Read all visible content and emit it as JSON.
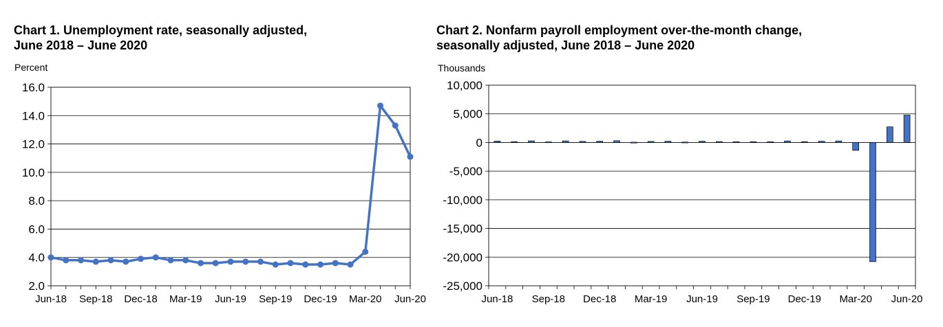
{
  "chart_data": [
    {
      "type": "line",
      "title_line1": "Chart 1. Unemployment rate, seasonally adjusted,",
      "title_line2": "June 2018 – June 2020",
      "ylabel": "Percent",
      "ylim": [
        2.0,
        16.0
      ],
      "yticks": [
        "16.0",
        "14.0",
        "12.0",
        "10.0",
        "8.0",
        "6.0",
        "4.0",
        "2.0"
      ],
      "ytick_values": [
        16,
        14,
        12,
        10,
        8,
        6,
        4,
        2
      ],
      "x_tick_labels": [
        "Jun-18",
        "Sep-18",
        "Dec-18",
        "Mar-19",
        "Jun-19",
        "Sep-19",
        "Dec-19",
        "Mar-20",
        "Jun-20"
      ],
      "x_tick_indices": [
        0,
        3,
        6,
        9,
        12,
        15,
        18,
        21,
        24
      ],
      "categories": [
        "Jun-18",
        "Jul-18",
        "Aug-18",
        "Sep-18",
        "Oct-18",
        "Nov-18",
        "Dec-18",
        "Jan-19",
        "Feb-19",
        "Mar-19",
        "Apr-19",
        "May-19",
        "Jun-19",
        "Jul-19",
        "Aug-19",
        "Sep-19",
        "Oct-19",
        "Nov-19",
        "Dec-19",
        "Jan-20",
        "Feb-20",
        "Mar-20",
        "Apr-20",
        "May-20",
        "Jun-20"
      ],
      "series": [
        {
          "values": [
            4.0,
            3.8,
            3.8,
            3.7,
            3.8,
            3.7,
            3.9,
            4.0,
            3.8,
            3.8,
            3.6,
            3.6,
            3.7,
            3.7,
            3.7,
            3.5,
            3.6,
            3.5,
            3.5,
            3.6,
            3.5,
            4.4,
            14.7,
            13.3,
            11.1
          ]
        }
      ],
      "grid": true,
      "color": "#4472C4"
    },
    {
      "type": "bar",
      "title_line1": "Chart 2. Nonfarm payroll employment over-the-month change,",
      "title_line2": "seasonally adjusted, June 2018 – June 2020",
      "ylabel": "Thousands",
      "ylim": [
        -25000,
        10000
      ],
      "yticks": [
        "10,000",
        "5,000",
        "0",
        "-5,000",
        "-10,000",
        "-15,000",
        "-20,000",
        "-25,000"
      ],
      "ytick_values": [
        10000,
        5000,
        0,
        -5000,
        -10000,
        -15000,
        -20000,
        -25000
      ],
      "x_tick_labels": [
        "Jun-18",
        "Sep-18",
        "Dec-18",
        "Mar-19",
        "Jun-19",
        "Sep-19",
        "Dec-19",
        "Mar-20",
        "Jun-20"
      ],
      "x_tick_indices": [
        0,
        3,
        6,
        9,
        12,
        15,
        18,
        21,
        24
      ],
      "categories": [
        "Jun-18",
        "Jul-18",
        "Aug-18",
        "Sep-18",
        "Oct-18",
        "Nov-18",
        "Dec-18",
        "Jan-19",
        "Feb-19",
        "Mar-19",
        "Apr-19",
        "May-19",
        "Jun-19",
        "Jul-19",
        "Aug-19",
        "Sep-19",
        "Oct-19",
        "Nov-19",
        "Dec-19",
        "Jan-20",
        "Feb-20",
        "Mar-20",
        "Apr-20",
        "May-20",
        "Jun-20"
      ],
      "series": [
        {
          "values": [
            248,
            147,
            282,
            108,
            277,
            196,
            227,
            312,
            56,
            189,
            224,
            75,
            224,
            164,
            130,
            136,
            128,
            266,
            145,
            225,
            273,
            -1373,
            -20787,
            2725,
            4781
          ]
        }
      ],
      "grid": true,
      "color": "#4472C4"
    }
  ]
}
